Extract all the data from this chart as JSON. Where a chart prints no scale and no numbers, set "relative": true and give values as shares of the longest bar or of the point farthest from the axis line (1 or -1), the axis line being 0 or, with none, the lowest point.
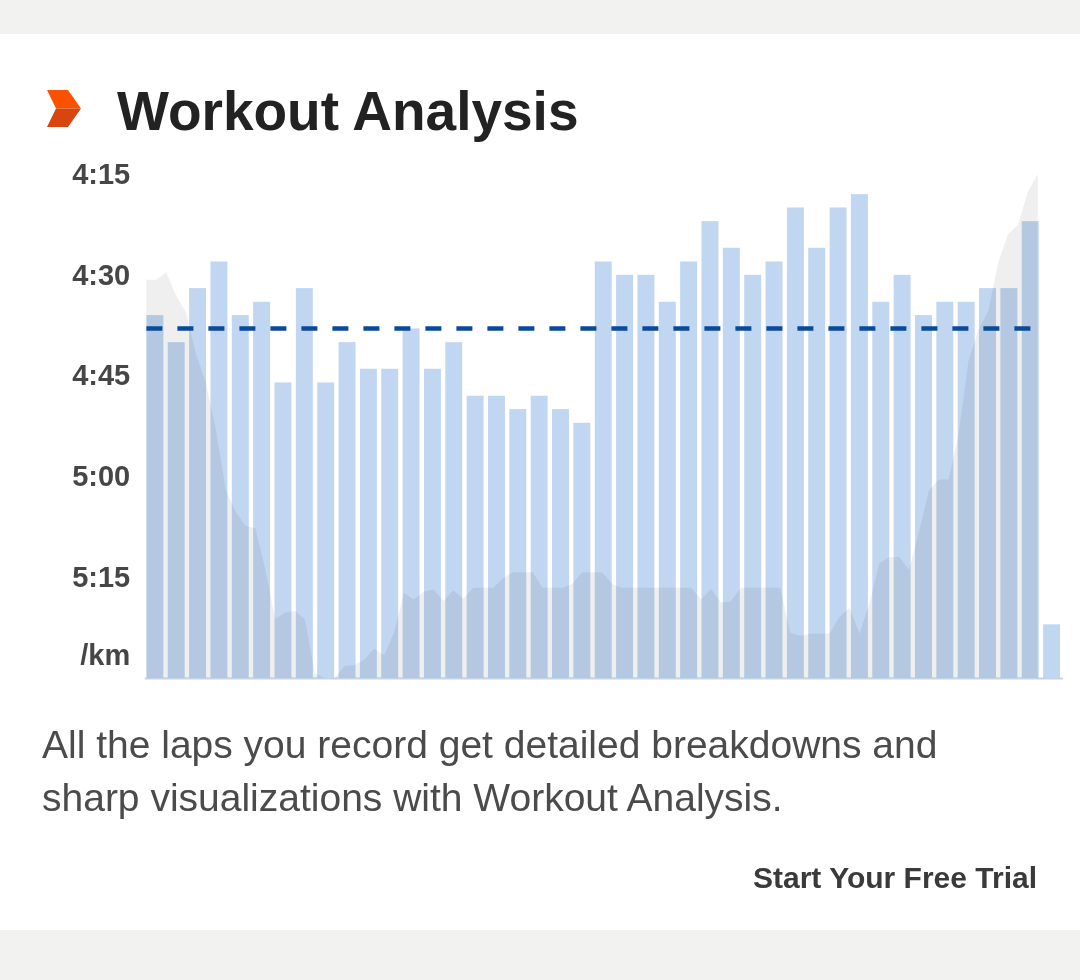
{
  "chart_data": [
    {
      "type": "bar",
      "title": "Workout Analysis",
      "ylabel": "/km",
      "categories": [
        null,
        null,
        null,
        null,
        null,
        null,
        null,
        null,
        null,
        null,
        null,
        null,
        null,
        null,
        null,
        null,
        null,
        null,
        null,
        null,
        null,
        null,
        null,
        null,
        null,
        null,
        null,
        null,
        null,
        null,
        null,
        null,
        null,
        null,
        null,
        null,
        null,
        null,
        null,
        null,
        null,
        null,
        null
      ],
      "base": [
        5.5,
        5.5,
        5.5,
        5.5,
        5.5,
        5.5,
        5.5,
        5.5,
        5.5,
        5.5,
        5.5,
        5.5,
        5.5,
        5.5,
        5.5,
        5.5,
        5.5,
        5.5,
        5.5,
        5.5,
        5.5,
        5.5,
        5.5,
        5.5,
        5.5,
        5.5,
        5.5,
        5.5,
        5.5,
        5.5,
        5.5,
        5.5,
        5.5,
        5.5,
        5.5,
        5.5,
        5.5,
        5.5,
        5.5,
        5.5,
        5.5,
        5.5,
        5.5
      ],
      "values": [
        -0.9,
        -0.833,
        -0.967,
        -1.033,
        -0.9,
        -0.933,
        -0.733,
        -0.967,
        -0.733,
        -0.833,
        -0.767,
        -0.767,
        -0.867,
        -0.767,
        -0.833,
        -0.7,
        -0.7,
        -0.667,
        -0.7,
        -0.667,
        -0.633,
        -1.033,
        -1,
        -1,
        -0.933,
        -1.033,
        -1.133,
        -1.067,
        -1,
        -1.033,
        -1.167,
        -1.067,
        -1.167,
        -1.2,
        -0.933,
        -1,
        -0.9,
        -0.933,
        -0.933,
        -0.967,
        -0.967,
        -1.133,
        -0.133
      ],
      "color": "#c1d6f0",
      "ylim": [
        5.5,
        4.25
      ],
      "yticks": [
        {
          "value": 4.25,
          "label": "4:15"
        },
        {
          "value": 4.5,
          "label": "4:30"
        },
        {
          "value": 4.75,
          "label": "4:45"
        },
        {
          "value": 5,
          "label": "5:00"
        },
        {
          "value": 5.25,
          "label": "5:15"
        }
      ],
      "tick_labels": "y",
      "ref_lines": [
        {
          "axis": "y",
          "value": 4.633,
          "color": "#0a4a9a",
          "line_style": "dashed"
        }
      ],
      "annotations": [
        "All the laps you record get detailed breakdowns and sharp visualizations with Workout Analysis.",
        "Start Your Free Trial"
      ]
    },
    {
      "type": "area",
      "relative": true,
      "color": "#efefef",
      "tick_labels": false,
      "categories": [
        null,
        null,
        null,
        null,
        null,
        null,
        null,
        null,
        null,
        null,
        null,
        null,
        null,
        null,
        null,
        null,
        null,
        null,
        null,
        null,
        null,
        null,
        null,
        null,
        null,
        null,
        null,
        null,
        null,
        null,
        null,
        null,
        null,
        null,
        null,
        null,
        null,
        null,
        null,
        null,
        null,
        null,
        null,
        null,
        null,
        null,
        null,
        null,
        null,
        null,
        null,
        null,
        null,
        null,
        null,
        null,
        null,
        null,
        null,
        null,
        null,
        null,
        null,
        null,
        null,
        null,
        null,
        null,
        null,
        null,
        null,
        null,
        null,
        null,
        null,
        null,
        null,
        null,
        null,
        null,
        null,
        null,
        null,
        null,
        null,
        null,
        null,
        null,
        null,
        null,
        null
      ],
      "values": [
        0.79,
        0.79,
        0.805,
        0.759,
        0.725,
        0.643,
        0.587,
        0.494,
        0.375,
        0.33,
        0.302,
        0.297,
        0.216,
        0.117,
        0.13,
        0.133,
        0.117,
        0.009,
        0,
        0,
        0.024,
        0.026,
        0.036,
        0.058,
        0.045,
        0.09,
        0.169,
        0.156,
        0.171,
        0.176,
        0.153,
        0.174,
        0.157,
        0.179,
        0.179,
        0.179,
        0.198,
        0.21,
        0.21,
        0.21,
        0.179,
        0.179,
        0.179,
        0.187,
        0.21,
        0.21,
        0.21,
        0.187,
        0.179,
        0.179,
        0.179,
        0.179,
        0.179,
        0.179,
        0.179,
        0.179,
        0.156,
        0.177,
        0.15,
        0.152,
        0.179,
        0.179,
        0.179,
        0.179,
        0.179,
        0.09,
        0.084,
        0.088,
        0.088,
        0.089,
        0.122,
        0.139,
        0.088,
        0.149,
        0.227,
        0.24,
        0.24,
        0.215,
        0.289,
        0.372,
        0.394,
        0.394,
        0.484,
        0.629,
        0.691,
        0.728,
        0.824,
        0.881,
        0.899,
        0.965,
        1
      ]
    }
  ]
}
